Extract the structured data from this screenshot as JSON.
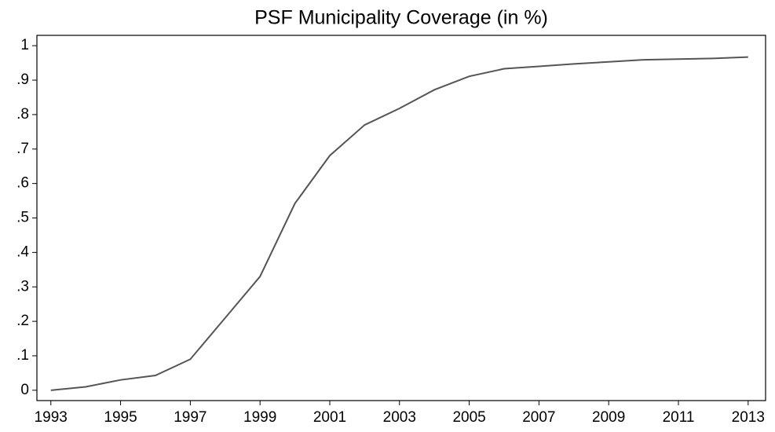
{
  "chart_data": {
    "type": "line",
    "title": "PSF Municipality Coverage (in %)",
    "x": [
      1993,
      1994,
      1995,
      1996,
      1997,
      1998,
      1999,
      2000,
      2001,
      2002,
      2003,
      2004,
      2005,
      2006,
      2007,
      2008,
      2009,
      2010,
      2011,
      2012,
      2013
    ],
    "values": [
      0,
      0.01,
      0.03,
      0.043,
      0.09,
      0.21,
      0.33,
      0.542,
      0.681,
      0.77,
      0.818,
      0.872,
      0.911,
      0.933,
      0.94,
      0.947,
      0.953,
      0.959,
      0.961,
      0.963,
      0.967
    ],
    "color": "#555555",
    "xlim": [
      1992.6,
      2013.5
    ],
    "xticks": [
      1993,
      1995,
      1997,
      1999,
      2001,
      2003,
      2005,
      2007,
      2009,
      2011,
      2013
    ],
    "ylim": [
      -0.03,
      1.03
    ],
    "yticks": [
      0,
      {
        "value": 0.1,
        "label": ".1"
      },
      {
        "value": 0.2,
        "label": ".2"
      },
      {
        "value": 0.3,
        "label": ".3"
      },
      {
        "value": 0.4,
        "label": ".4"
      },
      {
        "value": 0.5,
        "label": ".5"
      },
      {
        "value": 0.6,
        "label": ".6"
      },
      {
        "value": 0.7,
        "label": ".7"
      },
      {
        "value": 0.8,
        "label": ".8"
      },
      {
        "value": 0.9,
        "label": ".9"
      },
      1
    ]
  }
}
